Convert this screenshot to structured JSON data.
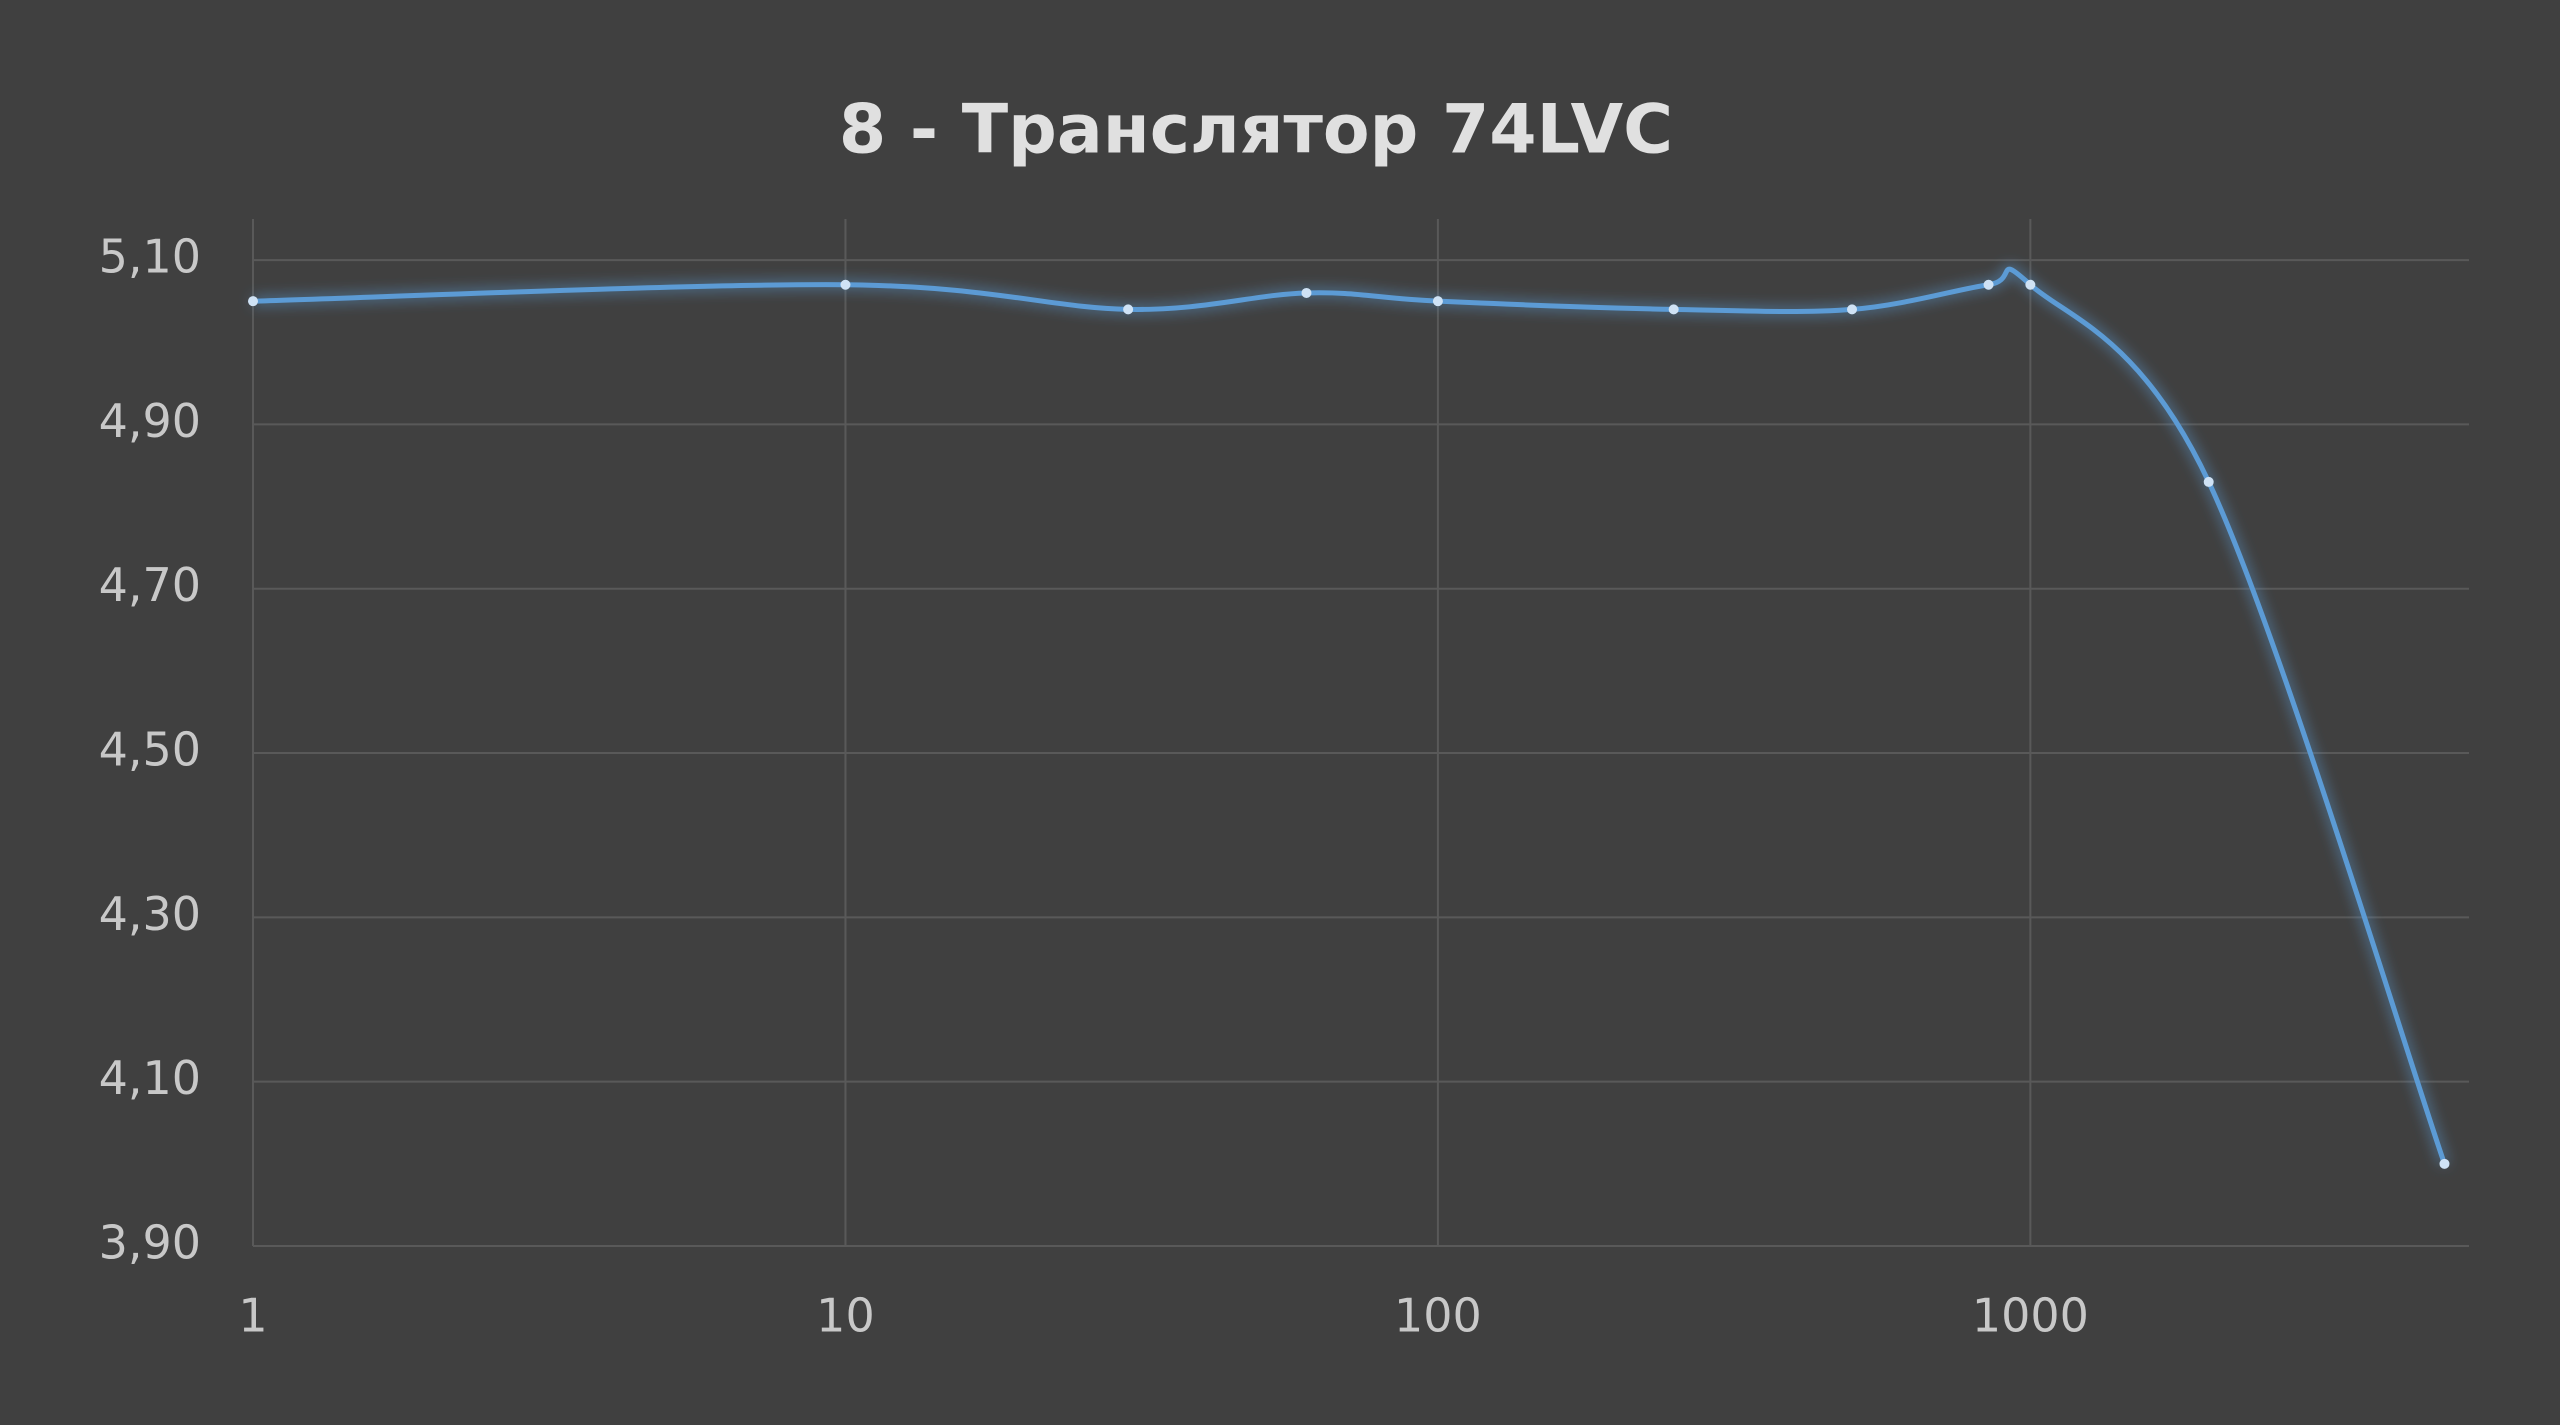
{
  "chart_data": {
    "type": "line",
    "title": "8 - Транслятор 74LVC",
    "x": [
      1,
      10,
      30,
      60,
      100,
      250,
      500,
      850,
      1000,
      2000,
      5000
    ],
    "series": [
      {
        "name": "74LVC",
        "color": "#5b9bd5",
        "values": [
          5.05,
          5.07,
          5.04,
          5.06,
          5.05,
          5.04,
          5.04,
          5.07,
          5.07,
          4.83,
          4.0
        ]
      }
    ],
    "xlim": [
      1,
      5500
    ],
    "xscale": "log",
    "xticks": [
      1,
      10,
      100,
      1000
    ],
    "ylim": [
      3.9,
      5.15
    ],
    "yticks": [
      {
        "value": 3.9,
        "label": "3,90"
      },
      {
        "value": 4.1,
        "label": "4,10"
      },
      {
        "value": 4.3,
        "label": "4,30"
      },
      {
        "value": 4.5,
        "label": "4,50"
      },
      {
        "value": 4.7,
        "label": "4,70"
      },
      {
        "value": 4.9,
        "label": "4,90"
      },
      {
        "value": 5.1,
        "label": "5,10"
      }
    ],
    "grid": true,
    "smooth": true
  }
}
